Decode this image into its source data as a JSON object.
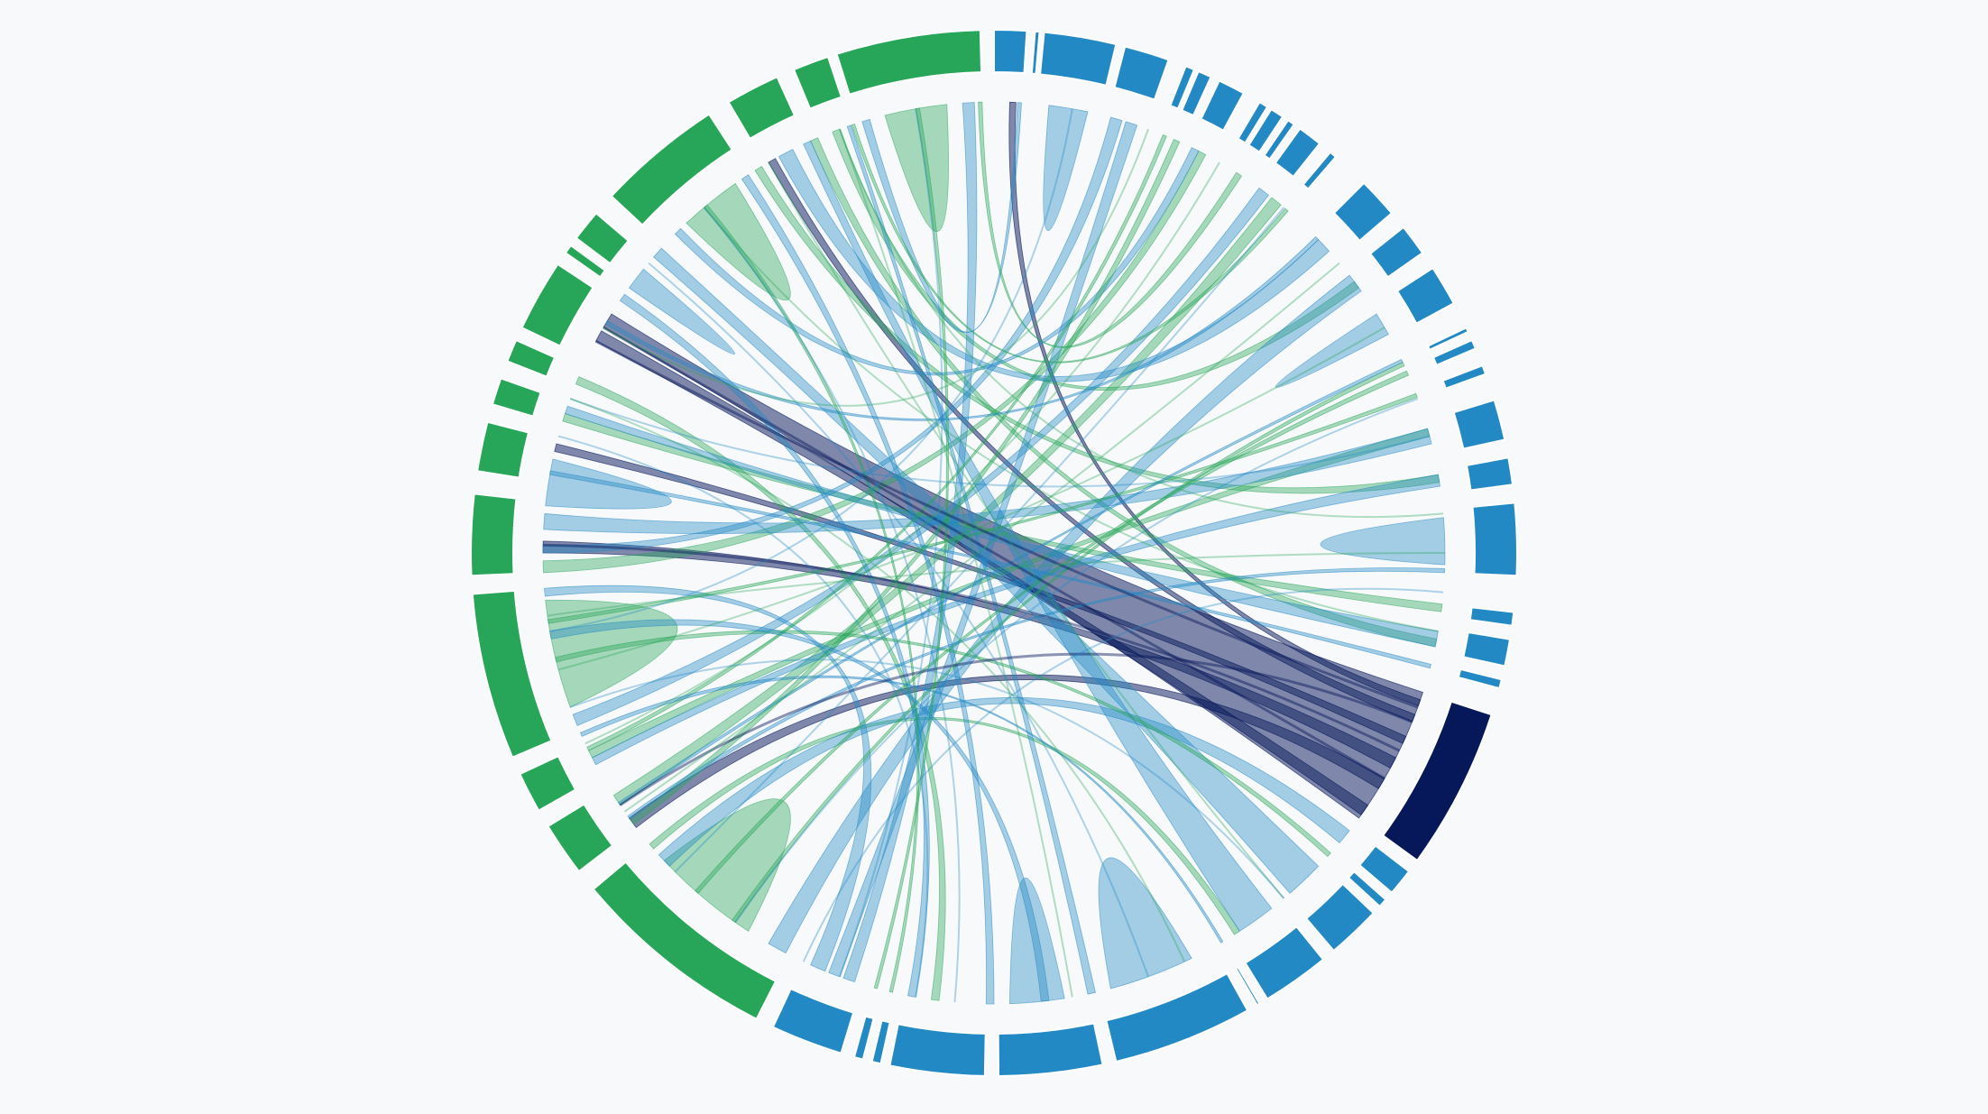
{
  "diagram": {
    "type": "chord",
    "colors": {
      "green": "#27a65a",
      "blue": "#2389c5",
      "navy": "#06175a",
      "background": "#f8f9fa",
      "arc_separator": "#ffffff"
    },
    "arcs": [
      {
        "angle": [
          0,
          3.6
        ],
        "color": "blue"
      },
      {
        "angle": [
          4.5,
          5.0
        ],
        "color": "blue"
      },
      {
        "angle": [
          5.5,
          13.5
        ],
        "color": "blue"
      },
      {
        "angle": [
          14.5,
          19.5
        ],
        "color": "blue"
      },
      {
        "angle": [
          21.5,
          22.5
        ],
        "color": "blue"
      },
      {
        "angle": [
          23.0,
          24.5
        ],
        "color": "blue"
      },
      {
        "angle": [
          25.5,
          28.5
        ],
        "color": "blue"
      },
      {
        "angle": [
          30.5,
          31.5
        ],
        "color": "blue"
      },
      {
        "angle": [
          32.0,
          33.5
        ],
        "color": "blue"
      },
      {
        "angle": [
          34.2,
          35.0
        ],
        "color": "blue"
      },
      {
        "angle": [
          35.8,
          38.5
        ],
        "color": "blue"
      },
      {
        "angle": [
          40.0,
          40.8
        ],
        "color": "blue"
      },
      {
        "angle": [
          45.0,
          49.5
        ],
        "color": "blue"
      },
      {
        "angle": [
          51.5,
          55.0
        ],
        "color": "blue"
      },
      {
        "angle": [
          57.0,
          61.5
        ],
        "color": "blue"
      },
      {
        "angle": [
          64.5,
          65.0
        ],
        "color": "blue"
      },
      {
        "angle": [
          66.0,
          67.0
        ],
        "color": "blue"
      },
      {
        "angle": [
          69.0,
          70.0
        ],
        "color": "blue"
      },
      {
        "angle": [
          73.0,
          77.5
        ],
        "color": "blue"
      },
      {
        "angle": [
          79.5,
          82.5
        ],
        "color": "blue"
      },
      {
        "angle": [
          84.5,
          92.5
        ],
        "color": "blue"
      },
      {
        "angle": [
          96.5,
          98.0
        ],
        "color": "blue"
      },
      {
        "angle": [
          99.5,
          102.5
        ],
        "color": "blue"
      },
      {
        "angle": [
          104.0,
          105.0
        ],
        "color": "blue"
      },
      {
        "angle": [
          108.0,
          126.0
        ],
        "color": "navy"
      },
      {
        "angle": [
          127.5,
          130.5
        ],
        "color": "blue"
      },
      {
        "angle": [
          131.5,
          132.5
        ],
        "color": "blue"
      },
      {
        "angle": [
          133.5,
          139.5
        ],
        "color": "blue"
      },
      {
        "angle": [
          141.0,
          148.5
        ],
        "color": "blue"
      },
      {
        "angle": [
          149.5,
          149.8
        ],
        "color": "blue"
      },
      {
        "angle": [
          151.0,
          166.5
        ],
        "color": "blue"
      },
      {
        "angle": [
          168.0,
          179.5
        ],
        "color": "blue"
      },
      {
        "angle": [
          181.0,
          191.5
        ],
        "color": "blue"
      },
      {
        "angle": [
          192.5,
          193.5
        ],
        "color": "blue"
      },
      {
        "angle": [
          194.5,
          195.5
        ],
        "color": "blue"
      },
      {
        "angle": [
          197.0,
          205.0
        ],
        "color": "blue"
      },
      {
        "angle": [
          207.0,
          230.0
        ],
        "color": "green"
      },
      {
        "angle": [
          232.5,
          238.5
        ],
        "color": "green"
      },
      {
        "angle": [
          240.5,
          245.0
        ],
        "color": "green"
      },
      {
        "angle": [
          247.0,
          265.5
        ],
        "color": "green"
      },
      {
        "angle": [
          267.5,
          276.5
        ],
        "color": "green"
      },
      {
        "angle": [
          279.0,
          284.5
        ],
        "color": "green"
      },
      {
        "angle": [
          286.5,
          289.5
        ],
        "color": "green"
      },
      {
        "angle": [
          291.5,
          294.0
        ],
        "color": "green"
      },
      {
        "angle": [
          295.5,
          303.5
        ],
        "color": "green"
      },
      {
        "angle": [
          305.0,
          306.0
        ],
        "color": "green"
      },
      {
        "angle": [
          307.0,
          310.5
        ],
        "color": "green"
      },
      {
        "angle": [
          313.0,
          327.0
        ],
        "color": "green"
      },
      {
        "angle": [
          329.5,
          335.5
        ],
        "color": "green"
      },
      {
        "angle": [
          337.5,
          341.5
        ],
        "color": "green"
      },
      {
        "angle": [
          342.5,
          358.5
        ],
        "color": "green"
      }
    ],
    "ribbons": [
      {
        "a": [
          108.0,
          126.0
        ],
        "b": [
          300.0,
          302.0
        ],
        "color": "navy",
        "opacity": 0.5
      },
      {
        "a": [
          250.0,
          264.0
        ],
        "b": [
          250.0,
          264.0
        ],
        "color": "green",
        "opacity": 0.4
      },
      {
        "a": [
          213.0,
          227.0
        ],
        "b": [
          213.0,
          227.0
        ],
        "color": "green",
        "opacity": 0.4
      },
      {
        "a": [
          317.0,
          325.0
        ],
        "b": [
          317.0,
          325.0
        ],
        "color": "green",
        "opacity": 0.4
      },
      {
        "a": [
          346.0,
          354.0
        ],
        "b": [
          346.0,
          354.0
        ],
        "color": "green",
        "opacity": 0.4
      },
      {
        "a": [
          154.0,
          165.0
        ],
        "b": [
          154.0,
          165.0
        ],
        "color": "blue",
        "opacity": 0.4
      },
      {
        "a": [
          171.0,
          178.0
        ],
        "b": [
          171.0,
          178.0
        ],
        "color": "blue",
        "opacity": 0.4
      },
      {
        "a": [
          7.0,
          12.0
        ],
        "b": [
          7.0,
          12.0
        ],
        "color": "blue",
        "opacity": 0.4
      },
      {
        "a": [
          85.5,
          91.5
        ],
        "b": [
          85.5,
          91.5
        ],
        "color": "blue",
        "opacity": 0.4
      },
      {
        "a": [
          58.0,
          61.0
        ],
        "b": [
          58.0,
          61.0
        ],
        "color": "blue",
        "opacity": 0.4
      },
      {
        "a": [
          276.0,
          282.0
        ],
        "b": [
          276.0,
          282.0
        ],
        "color": "blue",
        "opacity": 0.4
      },
      {
        "a": [
          306.0,
          309.0
        ],
        "b": [
          306.0,
          309.0
        ],
        "color": "blue",
        "opacity": 0.4
      },
      {
        "a": [
          298.0,
          299.5
        ],
        "b": [
          124.0,
          125.5
        ],
        "color": "navy",
        "opacity": 0.5
      },
      {
        "a": [
          232.5,
          234.0
        ],
        "b": [
          120.0,
          121.5
        ],
        "color": "navy",
        "opacity": 0.5
      },
      {
        "a": [
          270.0,
          271.5
        ],
        "b": [
          117.0,
          118.5
        ],
        "color": "navy",
        "opacity": 0.5
      },
      {
        "a": [
          283.0,
          284.0
        ],
        "b": [
          114.0,
          115.0
        ],
        "color": "navy",
        "opacity": 0.5
      },
      {
        "a": [
          330.0,
          331.0
        ],
        "b": [
          111.0,
          112.0
        ],
        "color": "navy",
        "opacity": 0.5
      },
      {
        "a": [
          2.0,
          2.8
        ],
        "b": [
          109.0,
          109.8
        ],
        "color": "navy",
        "opacity": 0.5
      },
      {
        "a": [
          236.0,
          237.5
        ],
        "b": [
          38.0,
          39.5
        ],
        "color": "green",
        "opacity": 0.4
      },
      {
        "a": [
          229.0,
          229.8
        ],
        "b": [
          147.0,
          147.8
        ],
        "color": "green",
        "opacity": 0.4
      },
      {
        "a": [
          243.0,
          244.0
        ],
        "b": [
          74.0,
          75.0
        ],
        "color": "green",
        "opacity": 0.4
      },
      {
        "a": [
          267.5,
          269.0
        ],
        "b": [
          27.0,
          28.0
        ],
        "color": "green",
        "opacity": 0.4
      },
      {
        "a": [
          287.0,
          288.0
        ],
        "b": [
          96.5,
          97.5
        ],
        "color": "green",
        "opacity": 0.4
      },
      {
        "a": [
          292.0,
          293.0
        ],
        "b": [
          187.0,
          188.0
        ],
        "color": "green",
        "opacity": 0.4
      },
      {
        "a": [
          328.0,
          329.0
        ],
        "b": [
          80.0,
          81.0
        ],
        "color": "green",
        "opacity": 0.4
      },
      {
        "a": [
          336.0,
          337.0
        ],
        "b": [
          101.0,
          102.0
        ],
        "color": "green",
        "opacity": 0.4
      },
      {
        "a": [
          339.0,
          340.0
        ],
        "b": [
          53.0,
          54.0
        ],
        "color": "green",
        "opacity": 0.4
      },
      {
        "a": [
          343.0,
          344.0
        ],
        "b": [
          3.0,
          3.5
        ],
        "color": "blue",
        "opacity": 0.4
      },
      {
        "a": [
          356.0,
          357.5
        ],
        "b": [
          198.0,
          199.5
        ],
        "color": "blue",
        "opacity": 0.4
      },
      {
        "a": [
          15.0,
          16.5
        ],
        "b": [
          270.0,
          271.0
        ],
        "color": "blue",
        "opacity": 0.4
      },
      {
        "a": [
          17.0,
          18.5
        ],
        "b": [
          200.0,
          201.5
        ],
        "color": "blue",
        "opacity": 0.4
      },
      {
        "a": [
          26.0,
          27.0
        ],
        "b": [
          315.0,
          316.0
        ],
        "color": "blue",
        "opacity": 0.4
      },
      {
        "a": [
          36.0,
          37.5
        ],
        "b": [
          247.5,
          249.0
        ],
        "color": "blue",
        "opacity": 0.4
      },
      {
        "a": [
          46.0,
          48.0
        ],
        "b": [
          331.5,
          333.5
        ],
        "color": "blue",
        "opacity": 0.4
      },
      {
        "a": [
          52.0,
          54.5
        ],
        "b": [
          207.5,
          210.0
        ],
        "color": "blue",
        "opacity": 0.4
      },
      {
        "a": [
          74.0,
          76.0
        ],
        "b": [
          273.0,
          275.0
        ],
        "color": "blue",
        "opacity": 0.4
      },
      {
        "a": [
          80.0,
          81.5
        ],
        "b": [
          242.0,
          243.0
        ],
        "color": "blue",
        "opacity": 0.4
      },
      {
        "a": [
          100.0,
          102.0
        ],
        "b": [
          288.0,
          289.0
        ],
        "color": "blue",
        "opacity": 0.4
      },
      {
        "a": [
          128.0,
          130.0
        ],
        "b": [
          226.0,
          228.0
        ],
        "color": "blue",
        "opacity": 0.4
      },
      {
        "a": [
          134.0,
          139.0
        ],
        "b": [
          311.0,
          312.5
        ],
        "color": "blue",
        "opacity": 0.4
      },
      {
        "a": [
          142.0,
          147.0
        ],
        "b": [
          335.0,
          336.0
        ],
        "color": "blue",
        "opacity": 0.4
      },
      {
        "a": [
          167.0,
          168.0
        ],
        "b": [
          341.0,
          341.5
        ],
        "color": "blue",
        "opacity": 0.4
      },
      {
        "a": [
          180.0,
          181.0
        ],
        "b": [
          326.0,
          327.0
        ],
        "color": "blue",
        "opacity": 0.4
      },
      {
        "a": [
          190.0,
          191.0
        ],
        "b": [
          304.0,
          305.0
        ],
        "color": "blue",
        "opacity": 0.4
      },
      {
        "a": [
          202.0,
          204.0
        ],
        "b": [
          264.5,
          265.5
        ],
        "color": "blue",
        "opacity": 0.4
      },
      {
        "a": [
          22.0,
          22.5
        ],
        "b": [
          244.0,
          244.5
        ],
        "color": "green",
        "opacity": 0.4
      },
      {
        "a": [
          23.5,
          24.3
        ],
        "b": [
          233.0,
          233.8
        ],
        "color": "green",
        "opacity": 0.4
      },
      {
        "a": [
          32.5,
          33.3
        ],
        "b": [
          358.0,
          358.5
        ],
        "color": "green",
        "opacity": 0.4
      },
      {
        "a": [
          40.2,
          40.7
        ],
        "b": [
          341.6,
          342.0
        ],
        "color": "green",
        "opacity": 0.4
      },
      {
        "a": [
          65.0,
          65.5
        ],
        "b": [
          215.0,
          215.5
        ],
        "color": "green",
        "opacity": 0.4
      },
      {
        "a": [
          66.2,
          66.8
        ],
        "b": [
          221.0,
          221.5
        ],
        "color": "green",
        "opacity": 0.4
      },
      {
        "a": [
          69.3,
          69.8
        ],
        "b": [
          261.0,
          261.5
        ],
        "color": "green",
        "opacity": 0.4
      },
      {
        "a": [
          193.0,
          193.4
        ],
        "b": [
          320.0,
          320.5
        ],
        "color": "green",
        "opacity": 0.4
      },
      {
        "a": [
          195.0,
          195.4
        ],
        "b": [
          350.0,
          350.5
        ],
        "color": "green",
        "opacity": 0.4
      },
      {
        "a": [
          131.7,
          132.3
        ],
        "b": [
          256.0,
          256.6
        ],
        "color": "green",
        "opacity": 0.4
      },
      {
        "a": [
          104.3,
          104.8
        ],
        "b": [
          280.0,
          280.5
        ],
        "color": "blue",
        "opacity": 0.4
      },
      {
        "a": [
          149.5,
          149.8
        ],
        "b": [
          246.0,
          246.5
        ],
        "color": "blue",
        "opacity": 0.4
      },
      {
        "a": [
          64.6,
          65.0
        ],
        "b": [
          236.0,
          236.4
        ],
        "color": "blue",
        "opacity": 0.4
      },
      {
        "a": [
          45.5,
          46.0
        ],
        "b": [
          300.5,
          301.0
        ],
        "color": "blue",
        "opacity": 0.4
      },
      {
        "a": [
          92.0,
          92.5
        ],
        "b": [
          233.8,
          234.3
        ],
        "color": "blue",
        "opacity": 0.4
      },
      {
        "a": [
          173.0,
          174.0
        ],
        "b": [
          259.0,
          260.0
        ],
        "color": "blue",
        "opacity": 0.4
      }
    ]
  }
}
